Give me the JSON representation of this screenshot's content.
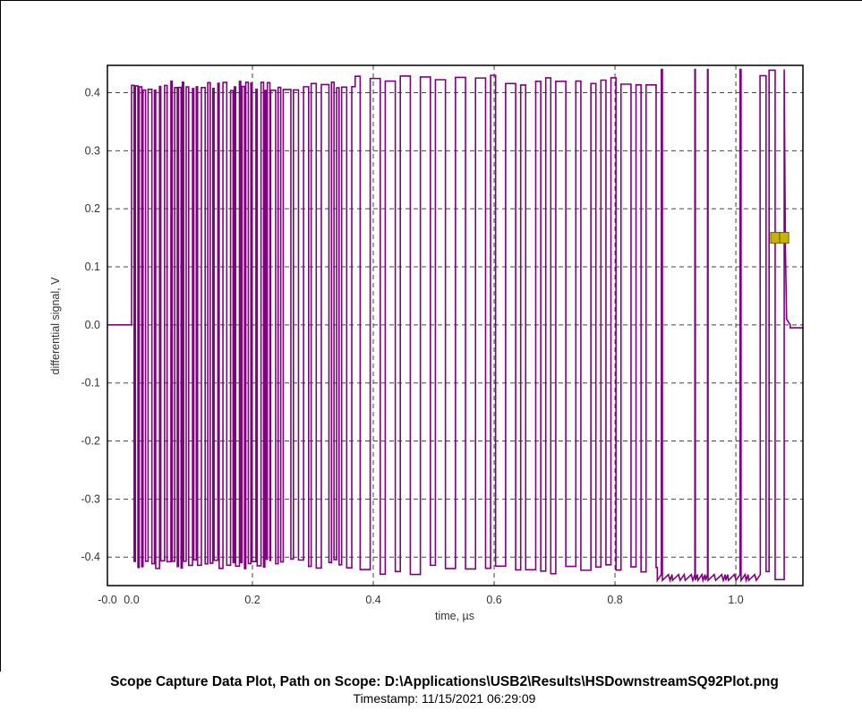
{
  "chart_data": {
    "type": "line",
    "xlabel": "time, µs",
    "ylabel": "differential signal, V",
    "xlim": [
      -0.04,
      1.111
    ],
    "ylim": [
      -0.449,
      0.447
    ],
    "x_ticks": [
      {
        "v": -0.04,
        "label": "-0.0"
      },
      {
        "v": 0.0,
        "label": "0.0"
      },
      {
        "v": 0.2,
        "label": "0.2"
      },
      {
        "v": 0.4,
        "label": "0.4"
      },
      {
        "v": 0.6,
        "label": "0.6"
      },
      {
        "v": 0.8,
        "label": "0.8"
      },
      {
        "v": 1.0,
        "label": "1.0"
      }
    ],
    "y_ticks": [
      {
        "v": 0.4,
        "label": "0.4"
      },
      {
        "v": 0.3,
        "label": "0.3"
      },
      {
        "v": 0.2,
        "label": "0.2"
      },
      {
        "v": 0.1,
        "label": "0.1"
      },
      {
        "v": 0.0,
        "label": "0.0"
      },
      {
        "v": -0.1,
        "label": "-0.1"
      },
      {
        "v": -0.2,
        "label": "-0.2"
      },
      {
        "v": -0.3,
        "label": "-0.3"
      },
      {
        "v": -0.4,
        "label": "-0.4"
      }
    ],
    "grid": true,
    "series_color": "#800080",
    "marker_color": "#c8b400",
    "signal_segments": [
      {
        "t_start": -0.04,
        "t_end": 0.0,
        "pattern": "idle",
        "level": 0.0
      },
      {
        "t_start": 0.0,
        "t_end": 0.23,
        "pattern": "toggle",
        "toggle_interval": 0.0021,
        "high": 0.42,
        "low": -0.42
      },
      {
        "t_start": 0.23,
        "t_end": 0.37,
        "pattern": "toggle",
        "toggle_interval": 0.0042,
        "high": 0.42,
        "low": -0.42
      },
      {
        "t_start": 0.37,
        "t_end": 0.87,
        "pattern": "toggle",
        "toggle_interval": 0.0083,
        "high": 0.43,
        "low": -0.43
      },
      {
        "t_start": 0.87,
        "t_end": 1.04,
        "pattern": "low-with-spikes",
        "toggle_interval": 0.0042,
        "high": 0.44,
        "low": -0.44
      },
      {
        "t_start": 1.04,
        "t_end": 1.08,
        "pattern": "toggle",
        "toggle_interval": 0.005,
        "high": 0.44,
        "low": -0.44
      },
      {
        "t_start": 1.08,
        "t_end": 1.09,
        "pattern": "decay",
        "high": 0.44,
        "low": 0.0
      },
      {
        "t_start": 1.09,
        "t_end": 1.111,
        "pattern": "idle",
        "level": -0.005
      }
    ],
    "markers": [
      {
        "x": 1.065,
        "y": 0.15
      },
      {
        "x": 1.08,
        "y": 0.15
      }
    ]
  },
  "caption": {
    "title": "Scope Capture Data Plot, Path on Scope: D:\\Applications\\USB2\\Results\\HSDownstreamSQ92Plot.png",
    "timestamp": "Timestamp: 11/15/2021 06:29:09"
  }
}
